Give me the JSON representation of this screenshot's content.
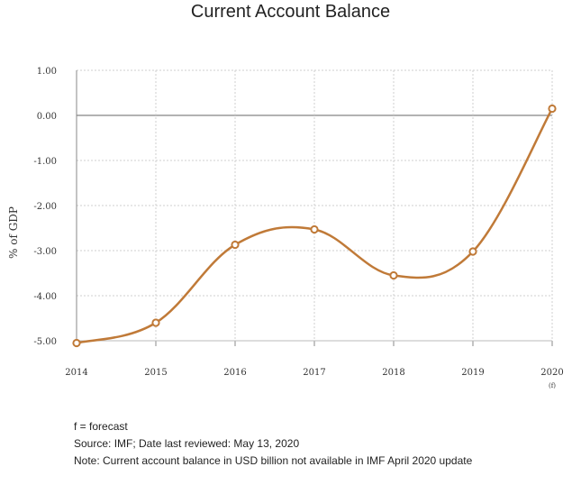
{
  "chart_data": {
    "type": "line",
    "title": "Current Account Balance",
    "ylabel": "% of GDP",
    "xlabel": "",
    "categories": [
      "2014",
      "2015",
      "2016",
      "2017",
      "2018",
      "2019",
      "2020"
    ],
    "category_sublabels": [
      "",
      "",
      "",
      "",
      "",
      "",
      "(f)"
    ],
    "series": [
      {
        "values": [
          -5.05,
          -4.6,
          -2.87,
          -2.53,
          -3.55,
          -3.02,
          0.15
        ]
      }
    ],
    "ylim": [
      -5,
      1
    ],
    "yticks": [
      1,
      0,
      -1,
      -2,
      -3,
      -4,
      -5
    ],
    "ytick_labels": [
      "1.00",
      "0.00",
      "-1.00",
      "-2.00",
      "-3.00",
      "-4.00",
      "-5.00"
    ],
    "grid": true,
    "line_color": "#c07a38",
    "zero_line_color": "#666666"
  },
  "notes": [
    "f = forecast",
    "Source: IMF; Date last reviewed: May 13, 2020",
    "Note: Current account balance in USD billion not available in IMF April 2020 update"
  ]
}
